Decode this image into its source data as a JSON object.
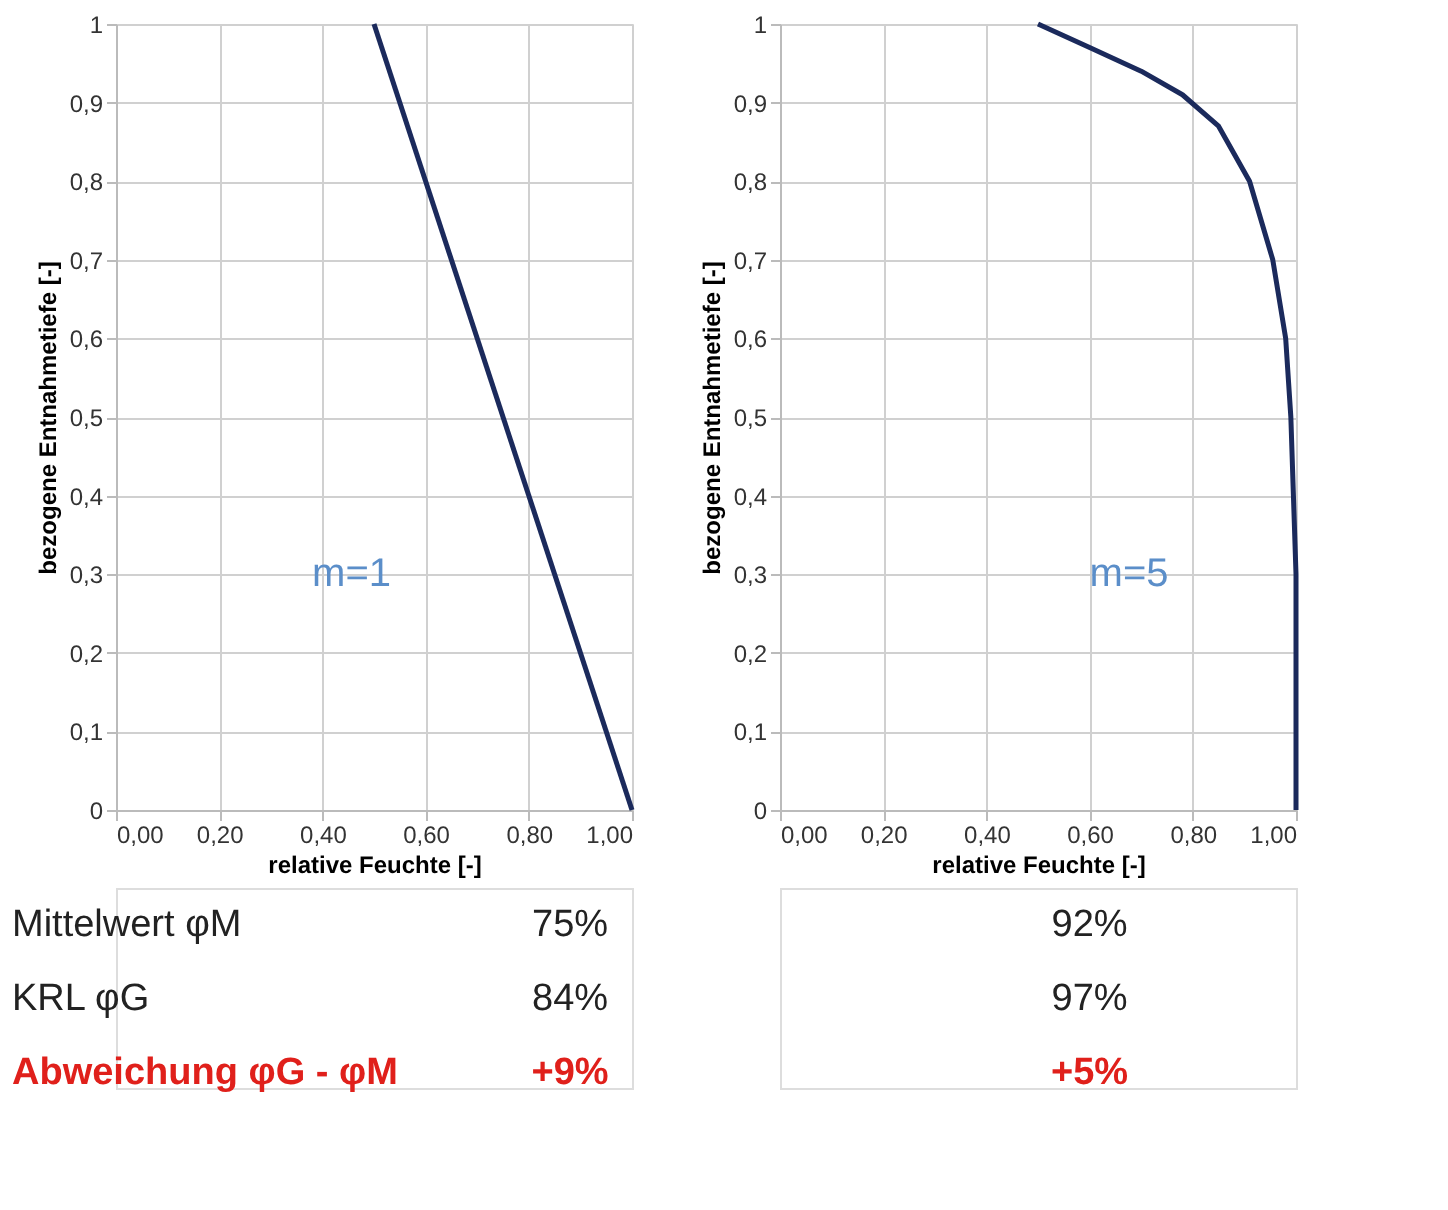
{
  "chart_data": [
    {
      "type": "line",
      "xlabel": "relative Feuchte [-]",
      "ylabel": "bezogene Entnahmetiefe [-]",
      "series": [
        {
          "color": "#1b2a5c",
          "x": [
            1.0,
            0.5
          ],
          "values": [
            0,
            1
          ]
        }
      ],
      "xlim": [
        0,
        1
      ],
      "ylim": [
        0,
        1
      ],
      "xticks": [
        {
          "value": 0,
          "label": "0,00"
        },
        {
          "value": 0.2,
          "label": "0,20"
        },
        {
          "value": 0.4,
          "label": "0,40"
        },
        {
          "value": 0.6,
          "label": "0,60"
        },
        {
          "value": 0.8,
          "label": "0,80"
        },
        {
          "value": 1,
          "label": "1,00"
        }
      ],
      "yticks": [
        0,
        {
          "value": 0.1,
          "label": "0,1"
        },
        {
          "value": 0.2,
          "label": "0,2"
        },
        {
          "value": 0.3,
          "label": "0,3"
        },
        {
          "value": 0.4,
          "label": "0,4"
        },
        {
          "value": 0.5,
          "label": "0,5"
        },
        {
          "value": 0.6,
          "label": "0,6"
        },
        {
          "value": 0.7,
          "label": "0,7"
        },
        {
          "value": 0.8,
          "label": "0,8"
        },
        {
          "value": 0.9,
          "label": "0,9"
        },
        1
      ],
      "grid": true,
      "marker": "none",
      "line_style": "solid",
      "annotations": [
        "m=1",
        "Mittelwert φM",
        "75%",
        "KRL φG",
        "84%",
        "Abweichung φG - φM",
        "+9%"
      ]
    },
    {
      "type": "line",
      "xlabel": "relative Feuchte [-]",
      "ylabel": "bezogene Entnahmetiefe [-]",
      "series": [
        {
          "color": "#1b2a5c",
          "x": [
            1.0,
            1.0,
            0.995,
            0.99,
            0.98,
            0.955,
            0.91,
            0.85,
            0.78,
            0.7,
            0.6,
            0.5
          ],
          "values": [
            0,
            0.3,
            0.4,
            0.5,
            0.6,
            0.7,
            0.8,
            0.87,
            0.91,
            0.94,
            0.97,
            1
          ]
        }
      ],
      "xlim": [
        0,
        1
      ],
      "ylim": [
        0,
        1
      ],
      "xticks": [
        {
          "value": 0,
          "label": "0,00"
        },
        {
          "value": 0.2,
          "label": "0,20"
        },
        {
          "value": 0.4,
          "label": "0,40"
        },
        {
          "value": 0.6,
          "label": "0,60"
        },
        {
          "value": 0.8,
          "label": "0,80"
        },
        {
          "value": 1,
          "label": "1,00"
        }
      ],
      "yticks": [
        0,
        {
          "value": 0.1,
          "label": "0,1"
        },
        {
          "value": 0.2,
          "label": "0,2"
        },
        {
          "value": 0.3,
          "label": "0,3"
        },
        {
          "value": 0.4,
          "label": "0,4"
        },
        {
          "value": 0.5,
          "label": "0,5"
        },
        {
          "value": 0.6,
          "label": "0,6"
        },
        {
          "value": 0.7,
          "label": "0,7"
        },
        {
          "value": 0.8,
          "label": "0,8"
        },
        {
          "value": 0.9,
          "label": "0,9"
        },
        1
      ],
      "grid": true,
      "marker": "none",
      "line_style": "solid",
      "annotations": [
        "m=5",
        "92%",
        "97%",
        "+5%"
      ]
    }
  ]
}
